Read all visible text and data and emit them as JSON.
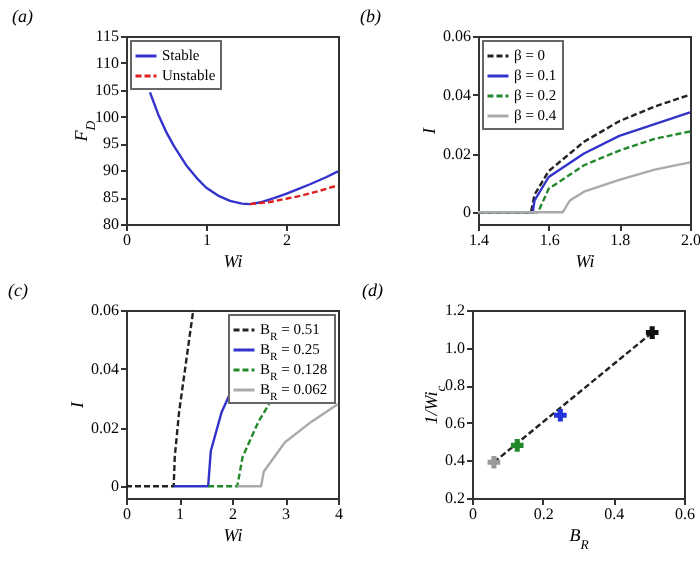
{
  "chart_data": [
    {
      "type": "line",
      "title": "(a)",
      "xlabel": "Wi",
      "ylabel": "F$_{D}$",
      "xlim": [
        0,
        2.65
      ],
      "xticks": [
        0,
        1,
        2
      ],
      "ylim": [
        80,
        115
      ],
      "yticks": [
        80,
        85,
        90,
        95,
        100,
        105,
        110,
        115
      ],
      "legend": "top left",
      "series": [
        {
          "name": "Stable",
          "color": "#3333cc",
          "line_style": "solid",
          "x": [
            0.3,
            0.4,
            0.5,
            0.6,
            0.75,
            0.9,
            1.0,
            1.15,
            1.3,
            1.45,
            1.55,
            1.7,
            1.85,
            2.0,
            2.15,
            2.3,
            2.5,
            2.65
          ],
          "values": [
            104.5,
            100.5,
            97.2,
            94.5,
            91.0,
            88.3,
            86.8,
            85.3,
            84.3,
            83.8,
            83.7,
            84.1,
            84.8,
            85.6,
            86.5,
            87.4,
            88.7,
            89.8
          ]
        },
        {
          "name": "Unstable",
          "color": "#e02020",
          "line_style": "dashed",
          "x": [
            1.55,
            1.8,
            2.0,
            2.2,
            2.4,
            2.65
          ],
          "values": [
            83.7,
            84.1,
            84.7,
            85.3,
            86.1,
            87.2
          ]
        }
      ]
    },
    {
      "type": "line",
      "title": "(b)",
      "xlabel": "Wi",
      "ylabel": "I",
      "xlim": [
        1.4,
        2.0
      ],
      "xticks": [
        1.4,
        1.6,
        1.8,
        {
          "value": 2.0,
          "label": "2.0"
        }
      ],
      "ylim": [
        -0.004,
        0.06
      ],
      "yticks": [
        0,
        0.02,
        0.04,
        0.06
      ],
      "legend": "top left",
      "series": [
        {
          "name": "β = 0",
          "color": "#222222",
          "line_style": "dashed",
          "x": [
            1.4,
            1.55,
            1.56,
            1.6,
            1.7,
            1.8,
            1.9,
            2.0
          ],
          "values": [
            0,
            0,
            0.006,
            0.014,
            0.024,
            0.031,
            0.036,
            0.04
          ]
        },
        {
          "name": "β = 0.1",
          "color": "#3333cc",
          "line_style": "solid",
          "x": [
            1.4,
            1.555,
            1.56,
            1.6,
            1.7,
            1.8,
            1.9,
            2.0
          ],
          "values": [
            0,
            0,
            0.004,
            0.012,
            0.02,
            0.026,
            0.03,
            0.034
          ]
        },
        {
          "name": "β = 0.2",
          "color": "#22882a",
          "line_style": "dashed",
          "x": [
            1.4,
            1.57,
            1.6,
            1.7,
            1.8,
            1.9,
            2.0
          ],
          "values": [
            0,
            0,
            0.008,
            0.016,
            0.021,
            0.025,
            0.0275
          ]
        },
        {
          "name": "β = 0.4",
          "color": "#aaaaaa",
          "line_style": "solid",
          "x": [
            1.4,
            1.64,
            1.66,
            1.7,
            1.8,
            1.9,
            2.0
          ],
          "values": [
            0,
            0,
            0.004,
            0.007,
            0.011,
            0.0145,
            0.017
          ]
        }
      ]
    },
    {
      "type": "line",
      "title": "(c)",
      "xlabel": "Wi",
      "ylabel": "I",
      "xlim": [
        0,
        4
      ],
      "xticks": [
        0,
        1,
        2,
        3,
        4
      ],
      "ylim": [
        -0.004,
        0.06
      ],
      "yticks": [
        0,
        0.02,
        0.04,
        0.06
      ],
      "legend": "top right",
      "series": [
        {
          "name": "B$_{R}$ = 0.51",
          "color": "#222222",
          "line_style": "dashed",
          "x": [
            0,
            0.9,
            0.92,
            1.0,
            1.1,
            1.2,
            1.27
          ],
          "values": [
            0,
            0,
            0.01,
            0.025,
            0.038,
            0.051,
            0.06
          ]
        },
        {
          "name": "B$_{R}$ = 0.25",
          "color": "#3333cc",
          "line_style": "solid",
          "x": [
            0.9,
            1.55,
            1.6,
            1.8,
            2.0
          ],
          "values": [
            0,
            0,
            0.012,
            0.025,
            0.033
          ]
        },
        {
          "name": "B$_{R}$ = 0.128",
          "color": "#22882a",
          "line_style": "dashed",
          "x": [
            1.55,
            2.1,
            2.2,
            2.5,
            2.7
          ],
          "values": [
            0,
            0,
            0.01,
            0.022,
            0.028
          ]
        },
        {
          "name": "B$_{R}$ = 0.062",
          "color": "#aaaaaa",
          "line_style": "solid",
          "x": [
            2.1,
            2.55,
            2.6,
            3.0,
            3.5,
            4.0
          ],
          "values": [
            0,
            0,
            0.005,
            0.015,
            0.022,
            0.028
          ]
        }
      ]
    },
    {
      "type": "scatter",
      "title": "(d)",
      "xlabel": "B$_{R}$",
      "ylabel": "1/Wi$_{c}$",
      "xlim": [
        0,
        0.6
      ],
      "xticks": [
        0,
        0.2,
        0.4,
        0.6
      ],
      "ylim": [
        0.2,
        1.2
      ],
      "yticks": [
        0.2,
        0.4,
        0.6,
        0.8,
        {
          "value": 1.0,
          "label": "1.0"
        },
        1.2
      ],
      "series": [
        {
          "type": "line",
          "color": "#222222",
          "line_style": "dashed",
          "x": [
            0.062,
            0.51
          ],
          "values": [
            0.39,
            1.08
          ]
        },
        {
          "marker": "cross",
          "colors": [
            "#999999",
            "#22882a",
            "#2233dd",
            "#111111"
          ],
          "x": [
            0.062,
            0.128,
            0.25,
            0.51
          ],
          "values": [
            0.39,
            0.48,
            0.64,
            1.08
          ]
        }
      ]
    }
  ]
}
